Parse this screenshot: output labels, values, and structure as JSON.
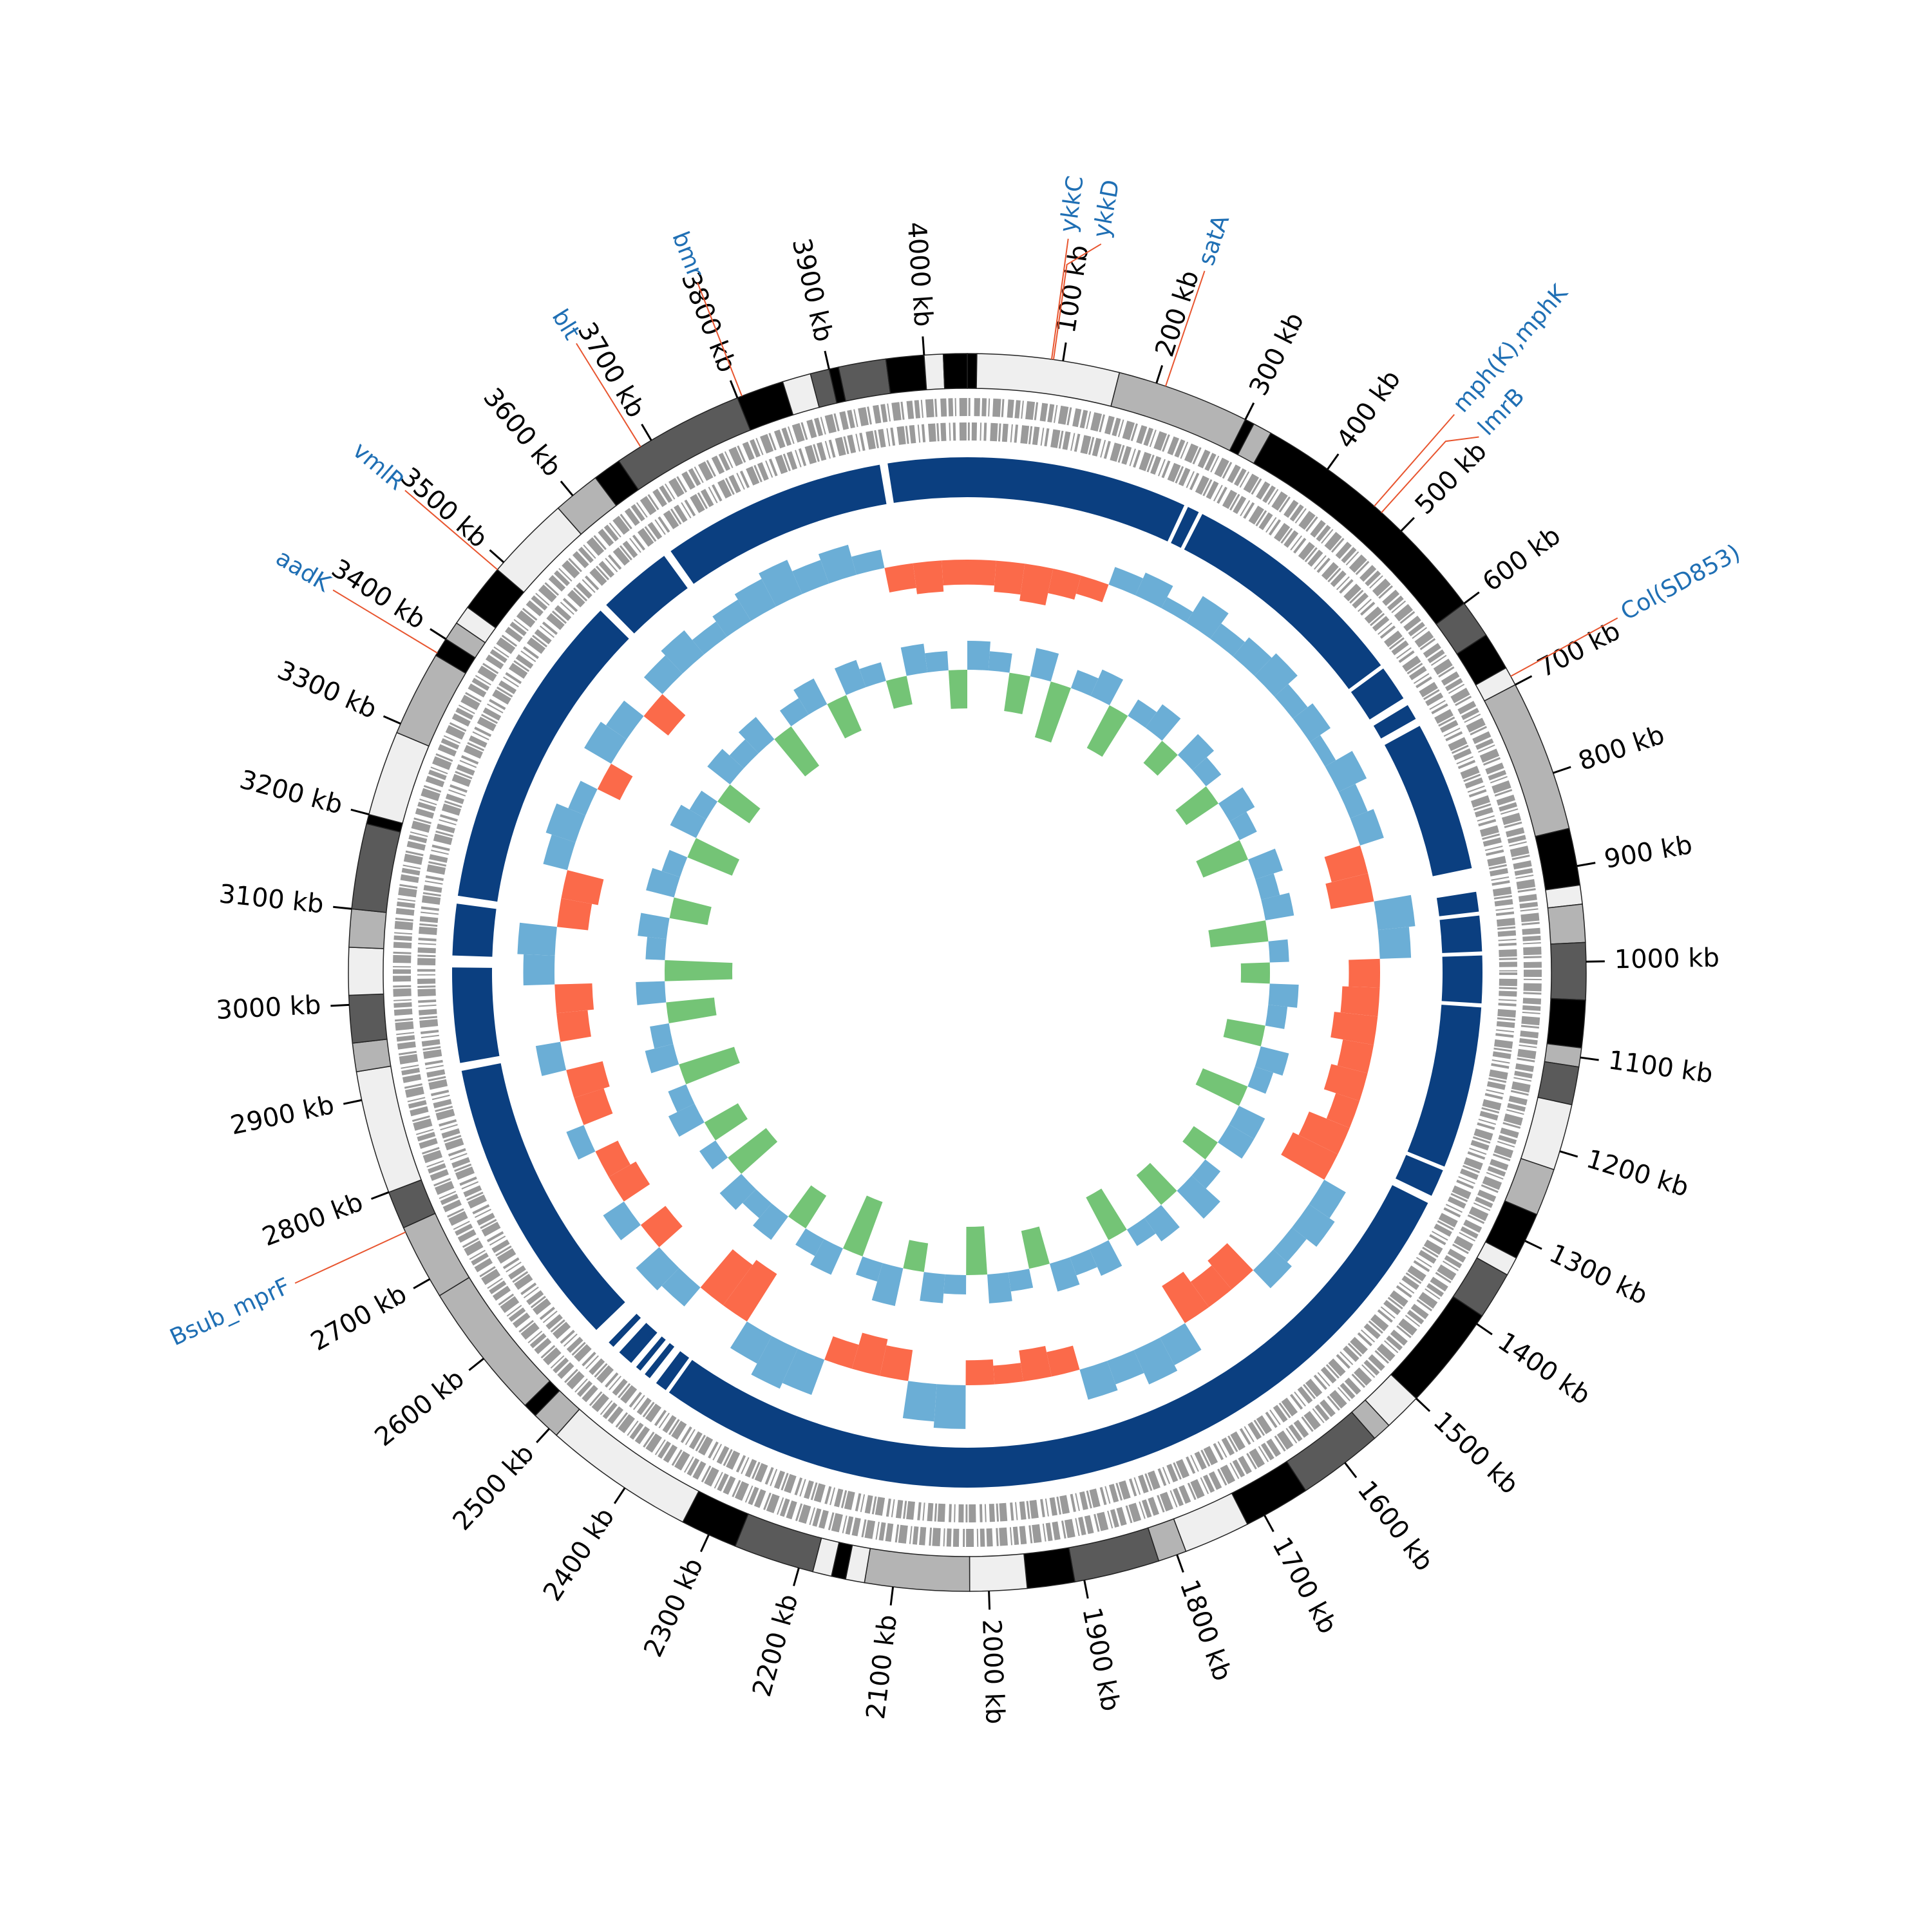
{
  "chart_data": {
    "type": "circular_genome",
    "xlim": [
      0,
      4045
    ],
    "xticks": [
      {
        "value": 100,
        "label": "100 kb"
      },
      {
        "value": 200,
        "label": "200 kb"
      },
      {
        "value": 300,
        "label": "300 kb"
      },
      {
        "value": 400,
        "label": "400 kb"
      },
      {
        "value": 500,
        "label": "500 kb"
      },
      {
        "value": 600,
        "label": "600 kb"
      },
      {
        "value": 700,
        "label": "700 kb"
      },
      {
        "value": 800,
        "label": "800 kb"
      },
      {
        "value": 900,
        "label": "900 kb"
      },
      {
        "value": 1000,
        "label": "1000 kb"
      },
      {
        "value": 1100,
        "label": "1100 kb"
      },
      {
        "value": 1200,
        "label": "1200 kb"
      },
      {
        "value": 1300,
        "label": "1300 kb"
      },
      {
        "value": 1400,
        "label": "1400 kb"
      },
      {
        "value": 1500,
        "label": "1500 kb"
      },
      {
        "value": 1600,
        "label": "1600 kb"
      },
      {
        "value": 1700,
        "label": "1700 kb"
      },
      {
        "value": 1800,
        "label": "1800 kb"
      },
      {
        "value": 1900,
        "label": "1900 kb"
      },
      {
        "value": 2000,
        "label": "2000 kb"
      },
      {
        "value": 2100,
        "label": "2100 kb"
      },
      {
        "value": 2200,
        "label": "2200 kb"
      },
      {
        "value": 2300,
        "label": "2300 kb"
      },
      {
        "value": 2400,
        "label": "2400 kb"
      },
      {
        "value": 2500,
        "label": "2500 kb"
      },
      {
        "value": 2600,
        "label": "2600 kb"
      },
      {
        "value": 2700,
        "label": "2700 kb"
      },
      {
        "value": 2800,
        "label": "2800 kb"
      },
      {
        "value": 2900,
        "label": "2900 kb"
      },
      {
        "value": 3000,
        "label": "3000 kb"
      },
      {
        "value": 3100,
        "label": "3100 kb"
      },
      {
        "value": 3200,
        "label": "3200 kb"
      },
      {
        "value": 3300,
        "label": "3300 kb"
      },
      {
        "value": 3400,
        "label": "3400 kb"
      },
      {
        "value": 3500,
        "label": "3500 kb"
      },
      {
        "value": 3600,
        "label": "3600 kb"
      },
      {
        "value": 3700,
        "label": "3700 kb"
      },
      {
        "value": 3800,
        "label": "3800 kb"
      },
      {
        "value": 3900,
        "label": "3900 kb"
      },
      {
        "value": 4000,
        "label": "4000 kb"
      }
    ],
    "annotation_color": "#1f6fb4",
    "annotation_line_color": "#e8552f",
    "annotations": [
      {
        "label": "ykkC",
        "x": 88
      },
      {
        "label": "ykkD",
        "x": 90
      },
      {
        "label": "satA",
        "x": 210
      },
      {
        "label": "mph(K),mphK",
        "x": 462
      },
      {
        "label": "lmrB",
        "x": 472
      },
      {
        "label": "Col(SD853)",
        "x": 690
      },
      {
        "label": "Bsub_mprF",
        "x": 2755
      },
      {
        "label": "aadK",
        "x": 3383
      },
      {
        "label": "vmlR",
        "x": 3490
      },
      {
        "label": "blt",
        "x": 3687
      },
      {
        "label": "bmr",
        "x": 3805
      }
    ],
    "contigs": [
      {
        "start": 0,
        "end": 10,
        "color": "#000000"
      },
      {
        "start": 10,
        "end": 160,
        "color": "#efefef"
      },
      {
        "start": 160,
        "end": 300,
        "color": "#b4b4b4"
      },
      {
        "start": 300,
        "end": 310,
        "color": "#000000"
      },
      {
        "start": 310,
        "end": 330,
        "color": "#b4b4b4"
      },
      {
        "start": 330,
        "end": 600,
        "color": "#000000"
      },
      {
        "start": 600,
        "end": 640,
        "color": "#5a5a5a"
      },
      {
        "start": 640,
        "end": 680,
        "color": "#000000"
      },
      {
        "start": 680,
        "end": 700,
        "color": "#efefef"
      },
      {
        "start": 700,
        "end": 860,
        "color": "#b4b4b4"
      },
      {
        "start": 860,
        "end": 920,
        "color": "#000000"
      },
      {
        "start": 920,
        "end": 940,
        "color": "#efefef"
      },
      {
        "start": 940,
        "end": 980,
        "color": "#b4b4b4"
      },
      {
        "start": 980,
        "end": 1040,
        "color": "#5a5a5a"
      },
      {
        "start": 1040,
        "end": 1090,
        "color": "#000000"
      },
      {
        "start": 1090,
        "end": 1110,
        "color": "#b4b4b4"
      },
      {
        "start": 1110,
        "end": 1150,
        "color": "#5a5a5a"
      },
      {
        "start": 1150,
        "end": 1220,
        "color": "#efefef"
      },
      {
        "start": 1220,
        "end": 1270,
        "color": "#b4b4b4"
      },
      {
        "start": 1270,
        "end": 1320,
        "color": "#000000"
      },
      {
        "start": 1320,
        "end": 1340,
        "color": "#efefef"
      },
      {
        "start": 1340,
        "end": 1390,
        "color": "#5a5a5a"
      },
      {
        "start": 1390,
        "end": 1500,
        "color": "#000000"
      },
      {
        "start": 1500,
        "end": 1540,
        "color": "#efefef"
      },
      {
        "start": 1540,
        "end": 1560,
        "color": "#b4b4b4"
      },
      {
        "start": 1560,
        "end": 1650,
        "color": "#5a5a5a"
      },
      {
        "start": 1650,
        "end": 1720,
        "color": "#000000"
      },
      {
        "start": 1720,
        "end": 1790,
        "color": "#efefef"
      },
      {
        "start": 1790,
        "end": 1820,
        "color": "#b4b4b4"
      },
      {
        "start": 1820,
        "end": 1910,
        "color": "#5a5a5a"
      },
      {
        "start": 1910,
        "end": 1960,
        "color": "#000000"
      },
      {
        "start": 1960,
        "end": 2020,
        "color": "#efefef"
      },
      {
        "start": 2020,
        "end": 2130,
        "color": "#b4b4b4"
      },
      {
        "start": 2130,
        "end": 2150,
        "color": "#efefef"
      },
      {
        "start": 2150,
        "end": 2165,
        "color": "#000000"
      },
      {
        "start": 2165,
        "end": 2185,
        "color": "#efefef"
      },
      {
        "start": 2185,
        "end": 2270,
        "color": "#5a5a5a"
      },
      {
        "start": 2270,
        "end": 2330,
        "color": "#000000"
      },
      {
        "start": 2330,
        "end": 2490,
        "color": "#efefef"
      },
      {
        "start": 2490,
        "end": 2520,
        "color": "#b4b4b4"
      },
      {
        "start": 2520,
        "end": 2535,
        "color": "#000000"
      },
      {
        "start": 2535,
        "end": 2680,
        "color": "#b4b4b4"
      },
      {
        "start": 2680,
        "end": 2760,
        "color": "#b4b4b4"
      },
      {
        "start": 2760,
        "end": 2800,
        "color": "#5a5a5a"
      },
      {
        "start": 2800,
        "end": 2930,
        "color": "#efefef"
      },
      {
        "start": 2930,
        "end": 2960,
        "color": "#b4b4b4"
      },
      {
        "start": 2960,
        "end": 3010,
        "color": "#5a5a5a"
      },
      {
        "start": 3010,
        "end": 3060,
        "color": "#efefef"
      },
      {
        "start": 3060,
        "end": 3100,
        "color": "#b4b4b4"
      },
      {
        "start": 3100,
        "end": 3190,
        "color": "#5a5a5a"
      },
      {
        "start": 3190,
        "end": 3200,
        "color": "#000000"
      },
      {
        "start": 3200,
        "end": 3290,
        "color": "#efefef"
      },
      {
        "start": 3290,
        "end": 3380,
        "color": "#b4b4b4"
      },
      {
        "start": 3380,
        "end": 3400,
        "color": "#000000"
      },
      {
        "start": 3400,
        "end": 3420,
        "color": "#b4b4b4"
      },
      {
        "start": 3420,
        "end": 3440,
        "color": "#efefef"
      },
      {
        "start": 3440,
        "end": 3490,
        "color": "#000000"
      },
      {
        "start": 3490,
        "end": 3580,
        "color": "#efefef"
      },
      {
        "start": 3580,
        "end": 3630,
        "color": "#b4b4b4"
      },
      {
        "start": 3630,
        "end": 3660,
        "color": "#000000"
      },
      {
        "start": 3660,
        "end": 3800,
        "color": "#5a5a5a"
      },
      {
        "start": 3800,
        "end": 3850,
        "color": "#000000"
      },
      {
        "start": 3850,
        "end": 3880,
        "color": "#efefef"
      },
      {
        "start": 3880,
        "end": 3900,
        "color": "#5a5a5a"
      },
      {
        "start": 3900,
        "end": 3910,
        "color": "#000000"
      },
      {
        "start": 3910,
        "end": 3960,
        "color": "#5a5a5a"
      },
      {
        "start": 3960,
        "end": 4000,
        "color": "#000000"
      },
      {
        "start": 4000,
        "end": 4020,
        "color": "#efefef"
      },
      {
        "start": 4020,
        "end": 4045,
        "color": "#000000"
      }
    ],
    "feature_color": "#0b3f80",
    "features": [
      {
        "start": 0,
        "end": 280
      },
      {
        "start": 285,
        "end": 300
      },
      {
        "start": 305,
        "end": 600
      },
      {
        "start": 605,
        "end": 650
      },
      {
        "start": 660,
        "end": 680
      },
      {
        "start": 690,
        "end": 880
      },
      {
        "start": 910,
        "end": 935
      },
      {
        "start": 940,
        "end": 985
      },
      {
        "start": 990,
        "end": 1050
      },
      {
        "start": 1055,
        "end": 1260
      },
      {
        "start": 1265,
        "end": 1300
      },
      {
        "start": 1310,
        "end": 2420
      },
      {
        "start": 2425,
        "end": 2440
      },
      {
        "start": 2450,
        "end": 2458
      },
      {
        "start": 2465,
        "end": 2472
      },
      {
        "start": 2480,
        "end": 2500
      },
      {
        "start": 2510,
        "end": 2518
      },
      {
        "start": 2540,
        "end": 2910
      },
      {
        "start": 2920,
        "end": 3040
      },
      {
        "start": 3055,
        "end": 3120
      },
      {
        "start": 3130,
        "end": 3535
      },
      {
        "start": 3545,
        "end": 3640
      },
      {
        "start": 3650,
        "end": 3935
      },
      {
        "start": 3945,
        "end": 4045
      }
    ],
    "x": [
      0,
      45,
      90,
      135,
      180,
      225,
      270,
      315,
      360,
      405,
      450,
      495,
      540,
      585,
      630,
      675,
      720,
      765,
      810,
      855,
      900,
      945,
      990,
      1035,
      1080,
      1125,
      1170,
      1215,
      1260,
      1305,
      1350,
      1395,
      1440,
      1485,
      1530,
      1575,
      1620,
      1665,
      1710,
      1755,
      1800,
      1845,
      1890,
      1935,
      1980,
      2025,
      2070,
      2115,
      2160,
      2205,
      2250,
      2295,
      2340,
      2385,
      2430,
      2475,
      2520,
      2565,
      2610,
      2655,
      2700,
      2745,
      2790,
      2835,
      2880,
      2925,
      2970,
      3015,
      3060,
      3105,
      3150,
      3195,
      3240,
      3285,
      3330,
      3375,
      3420,
      3465,
      3510,
      3555,
      3600,
      3645,
      3690,
      3735,
      3780,
      3825,
      3870,
      3915,
      3960,
      4005
    ],
    "gc_skew": {
      "ylim": [
        -1,
        1
      ],
      "positive_color": "#6baed6",
      "negative_color": "#fb6a4a",
      "values": [
        -0.4,
        -0.5,
        -0.6,
        -0.4,
        -0.3,
        0.3,
        0.4,
        0.2,
        0.5,
        0.3,
        0.4,
        0.5,
        0.3,
        0.4,
        0.2,
        0.5,
        0.3,
        0.4,
        -0.6,
        -0.7,
        0.6,
        0.5,
        -0.5,
        -0.6,
        -0.7,
        -0.5,
        -0.6,
        -0.4,
        -0.7,
        -0.8,
        0.4,
        0.5,
        0.3,
        0.4,
        -0.6,
        -0.5,
        -0.7,
        0.5,
        0.6,
        0.4,
        0.5,
        -0.4,
        -0.5,
        -0.3,
        -0.4,
        0.7,
        0.6,
        -0.5,
        -0.6,
        -0.4,
        0.6,
        0.7,
        0.5,
        -0.9,
        -0.8,
        0.4,
        0.5,
        -0.5,
        0.4,
        -0.5,
        -0.4,
        0.3,
        -0.5,
        -0.6,
        0.4,
        -0.5,
        -0.6,
        0.5,
        0.6,
        -0.5,
        -0.6,
        0.4,
        0.5,
        0.3,
        -0.4,
        0.5,
        0.4,
        -0.5,
        0.4,
        0.5,
        0.3,
        0.4,
        0.5,
        0.6,
        0.4,
        0.5,
        0.3,
        -0.4,
        -0.5,
        -0.4
      ]
    },
    "gc_content": {
      "ylim": [
        -1,
        1
      ],
      "positive_color": "#6baed6",
      "negative_color": "#74c476",
      "values": [
        0.3,
        0.2,
        -0.4,
        0.3,
        -0.6,
        0.2,
        0.3,
        -0.5,
        0.2,
        0.3,
        -0.3,
        0.3,
        0.2,
        -0.4,
        0.3,
        0.2,
        -0.5,
        0.3,
        0.2,
        0.3,
        -0.6,
        0.2,
        -0.3,
        0.3,
        0.2,
        -0.4,
        0.3,
        0.2,
        -0.5,
        0.3,
        0.3,
        -0.3,
        0.2,
        0.4,
        -0.4,
        0.3,
        0.2,
        -0.5,
        0.3,
        0.2,
        0.3,
        -0.4,
        0.2,
        0.3,
        -0.5,
        0.2,
        0.3,
        -0.3,
        0.4,
        0.2,
        -0.6,
        0.3,
        0.2,
        -0.4,
        0.3,
        0.2,
        0.3,
        -0.5,
        0.2,
        -0.4,
        0.3,
        0.2,
        -0.6,
        0.3,
        0.2,
        -0.5,
        0.3,
        -0.7,
        0.2,
        0.3,
        -0.4,
        0.3,
        0.2,
        -0.5,
        0.3,
        0.2,
        -0.4,
        0.3,
        0.2,
        0.3,
        -0.5,
        0.2,
        0.3,
        -0.4,
        0.3,
        0.2,
        -0.3,
        0.3,
        0.2,
        -0.4
      ]
    }
  }
}
